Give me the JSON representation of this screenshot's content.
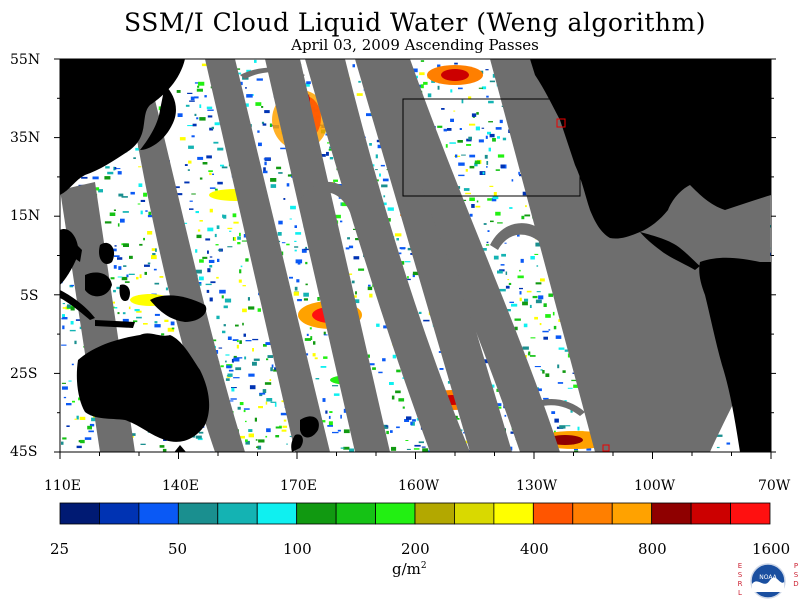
{
  "title": "SSM/I Cloud Liquid Water (Weng algorithm)",
  "subtitle": "April 03, 2009  Ascending Passes",
  "lat_labels": [
    "55N",
    "35N",
    "15N",
    "5S",
    "25S",
    "45S"
  ],
  "lon_labels": [
    "110E",
    "140E",
    "170E",
    "160W",
    "130W",
    "100W",
    "70W"
  ],
  "colorbar": {
    "labels": [
      "25",
      "50",
      "100",
      "200",
      "400",
      "800",
      "1600"
    ],
    "units_base": "g/m",
    "units_sup": "2",
    "colors": [
      "#001a73",
      "#0033b3",
      "#0a59f5",
      "#1a8f8f",
      "#14b3b3",
      "#0ff0f0",
      "#119911",
      "#15c215",
      "#22f012",
      "#b3a800",
      "#d9d900",
      "#ffff00",
      "#ff5500",
      "#ff7f00",
      "#ffa200",
      "#8f0000",
      "#cc0000",
      "#ff1010"
    ]
  },
  "colors": {
    "land": "#000000",
    "gap": "#6e6e6e",
    "ocean_nodata": "#ffffff"
  },
  "logo": {
    "left_letters": [
      "E",
      "S",
      "R",
      "L"
    ],
    "right_letters": [
      "P",
      "S",
      "D"
    ],
    "emblem_text": "NOAA"
  }
}
